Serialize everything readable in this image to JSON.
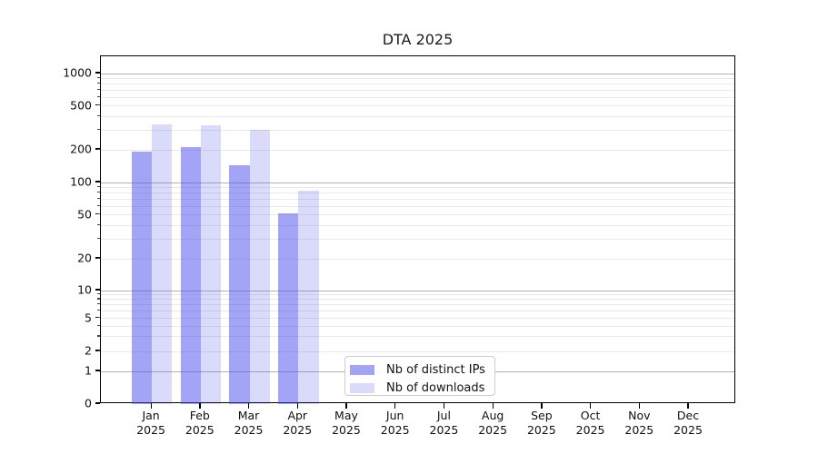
{
  "page": {
    "background": "#ffffff"
  },
  "chart_data": {
    "type": "bar",
    "title": "DTA 2025",
    "x_categories": [
      {
        "month": "Jan",
        "year": "2025"
      },
      {
        "month": "Feb",
        "year": "2025"
      },
      {
        "month": "Mar",
        "year": "2025"
      },
      {
        "month": "Apr",
        "year": "2025"
      },
      {
        "month": "May",
        "year": "2025"
      },
      {
        "month": "Jun",
        "year": "2025"
      },
      {
        "month": "Jul",
        "year": "2025"
      },
      {
        "month": "Aug",
        "year": "2025"
      },
      {
        "month": "Sep",
        "year": "2025"
      },
      {
        "month": "Oct",
        "year": "2025"
      },
      {
        "month": "Nov",
        "year": "2025"
      },
      {
        "month": "Dec",
        "year": "2025"
      }
    ],
    "series": [
      {
        "name": "Nb of distinct IPs",
        "color": "rgba(80,80,238,0.52)",
        "values": [
          193,
          213,
          145,
          52,
          null,
          null,
          null,
          null,
          null,
          null,
          null,
          null
        ]
      },
      {
        "name": "Nb of downloads",
        "color": "rgba(80,80,238,0.21)",
        "values": [
          338,
          333,
          306,
          84,
          null,
          null,
          null,
          null,
          null,
          null,
          null,
          null
        ]
      }
    ],
    "y_axis": {
      "scale": "symlog",
      "ticks": [
        0,
        1,
        2,
        5,
        10,
        20,
        50,
        100,
        200,
        500,
        1000
      ],
      "range": [
        0,
        1450
      ]
    },
    "grid": {
      "major_values": [
        1,
        10,
        100,
        1000
      ],
      "major_color": "#b2b2b2",
      "minor_color": "#e9e9e9"
    },
    "legend": {
      "position": "bottom-center-inside",
      "border_color": "#cccccc",
      "background": "#ffffff"
    }
  }
}
